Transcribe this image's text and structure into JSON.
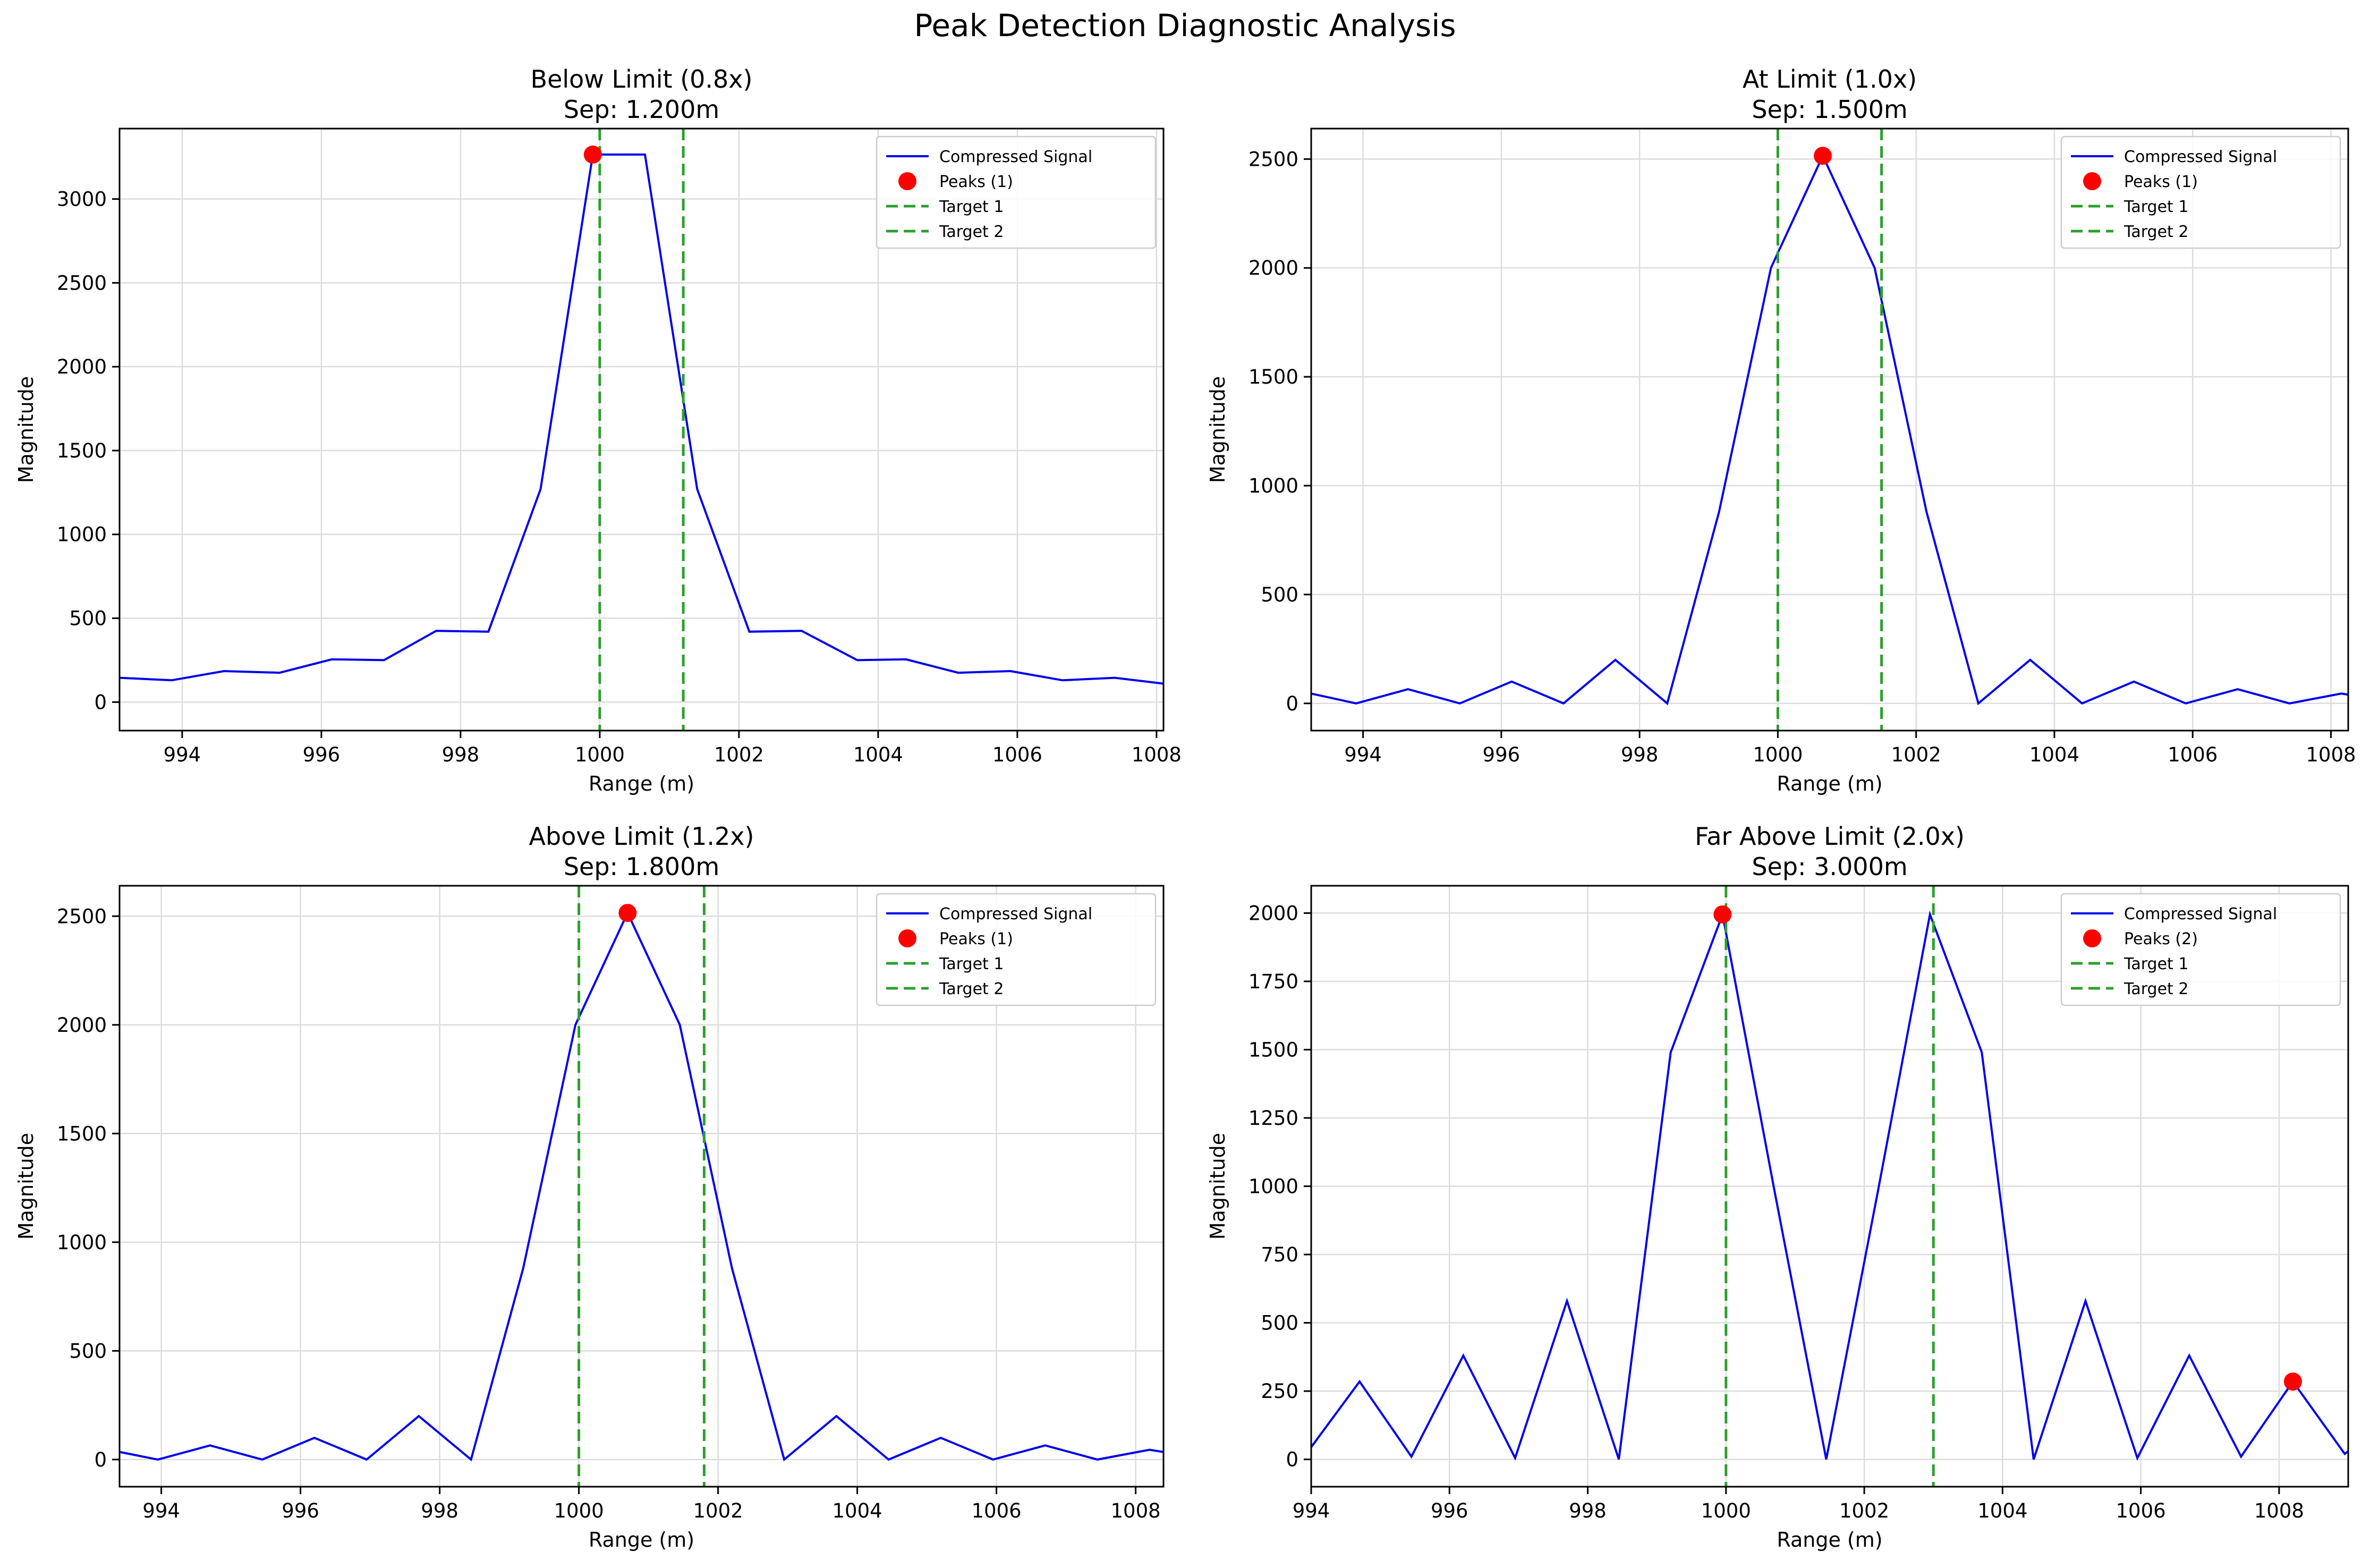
{
  "figure": {
    "title": "Peak Detection Diagnostic Analysis"
  },
  "legend_labels": {
    "signal": "Compressed Signal",
    "target1": "Target 1",
    "target2": "Target 2"
  },
  "colors": {
    "signal": "#0000ee",
    "peak": "#ff0000",
    "target": "#2ca02c",
    "grid": "#dcdcdc"
  },
  "chart_data": [
    {
      "type": "line",
      "title": "Below Limit (0.8x)",
      "subtitle": "Sep: 1.200m",
      "xlabel": "Range (m)",
      "ylabel": "Magnitude",
      "xlim": [
        993.1,
        1008.1
      ],
      "ylim": [
        -170,
        3420
      ],
      "xticks": [
        994,
        996,
        998,
        1000,
        1002,
        1004,
        1006,
        1008
      ],
      "yticks": [
        0,
        500,
        1000,
        1500,
        2000,
        2500,
        3000
      ],
      "grid": true,
      "legend_position": "top-right",
      "peaks_label": "Peaks (1)",
      "x": [
        993.1,
        993.85,
        994.6,
        995.4,
        996.15,
        996.9,
        997.65,
        998.4,
        999.15,
        999.9,
        1000.65,
        1001.4,
        1002.15,
        1002.9,
        1003.7,
        1004.4,
        1005.15,
        1005.9,
        1006.65,
        1007.4,
        1008.1
      ],
      "y": [
        145,
        130,
        185,
        175,
        255,
        250,
        425,
        420,
        1270,
        3265,
        3265,
        1270,
        420,
        425,
        250,
        255,
        175,
        185,
        130,
        145,
        110
      ],
      "peaks": [
        {
          "x": 999.9,
          "y": 3265
        }
      ],
      "targets": [
        1000.0,
        1001.2
      ]
    },
    {
      "type": "line",
      "title": "At Limit (1.0x)",
      "subtitle": "Sep: 1.500m",
      "xlabel": "Range (m)",
      "ylabel": "Magnitude",
      "xlim": [
        993.25,
        1008.25
      ],
      "ylim": [
        -125,
        2640
      ],
      "xticks": [
        994,
        996,
        998,
        1000,
        1002,
        1004,
        1006,
        1008
      ],
      "yticks": [
        0,
        500,
        1000,
        1500,
        2000,
        2500
      ],
      "grid": true,
      "legend_position": "top-right",
      "peaks_label": "Peaks (1)",
      "x": [
        993.25,
        993.9,
        994.65,
        995.4,
        996.15,
        996.9,
        997.65,
        998.4,
        999.15,
        999.9,
        1000.65,
        1001.4,
        1002.15,
        1002.9,
        1003.65,
        1004.4,
        1005.15,
        1005.9,
        1006.65,
        1007.4,
        1008.15,
        1008.25
      ],
      "y": [
        45,
        0,
        65,
        0,
        100,
        0,
        200,
        0,
        880,
        2000,
        2515,
        2000,
        880,
        0,
        200,
        0,
        100,
        0,
        65,
        0,
        45,
        40
      ],
      "peaks": [
        {
          "x": 1000.65,
          "y": 2515
        }
      ],
      "targets": [
        1000.0,
        1001.5
      ]
    },
    {
      "type": "line",
      "title": "Above Limit (1.2x)",
      "subtitle": "Sep: 1.800m",
      "xlabel": "Range (m)",
      "ylabel": "Magnitude",
      "xlim": [
        993.4,
        1008.4
      ],
      "ylim": [
        -125,
        2640
      ],
      "xticks": [
        994,
        996,
        998,
        1000,
        1002,
        1004,
        1006,
        1008
      ],
      "yticks": [
        0,
        500,
        1000,
        1500,
        2000,
        2500
      ],
      "grid": true,
      "legend_position": "top-right",
      "peaks_label": "Peaks (1)",
      "x": [
        993.4,
        993.95,
        994.7,
        995.45,
        996.2,
        996.95,
        997.7,
        998.45,
        999.2,
        999.95,
        1000.7,
        1001.45,
        1002.2,
        1002.95,
        1003.7,
        1004.45,
        1005.2,
        1005.95,
        1006.7,
        1007.45,
        1008.2,
        1008.4
      ],
      "y": [
        35,
        0,
        65,
        0,
        100,
        0,
        200,
        0,
        880,
        2000,
        2515,
        2000,
        880,
        0,
        200,
        0,
        100,
        0,
        65,
        0,
        45,
        35
      ],
      "peaks": [
        {
          "x": 1000.7,
          "y": 2515
        }
      ],
      "targets": [
        1000.0,
        1001.8
      ]
    },
    {
      "type": "line",
      "title": "Far Above Limit (2.0x)",
      "subtitle": "Sep: 3.000m",
      "xlabel": "Range (m)",
      "ylabel": "Magnitude",
      "xlim": [
        994,
        1009
      ],
      "ylim": [
        -100,
        2100
      ],
      "xticks": [
        994,
        996,
        998,
        1000,
        1002,
        1004,
        1006,
        1008
      ],
      "yticks": [
        0,
        250,
        500,
        750,
        1000,
        1250,
        1500,
        1750,
        2000
      ],
      "grid": true,
      "legend_position": "top-right",
      "peaks_label": "Peaks (2)",
      "x": [
        994.0,
        994.7,
        995.45,
        996.2,
        996.95,
        997.7,
        998.45,
        999.2,
        999.95,
        1000.7,
        1001.45,
        1002.2,
        1002.95,
        1003.7,
        1004.45,
        1005.2,
        1005.95,
        1006.7,
        1007.45,
        1008.2,
        1008.95,
        1009.0
      ],
      "y": [
        45,
        285,
        10,
        380,
        5,
        580,
        0,
        1490,
        1995,
        985,
        0,
        985,
        1995,
        1490,
        0,
        580,
        5,
        380,
        10,
        285,
        20,
        30
      ],
      "peaks": [
        {
          "x": 999.95,
          "y": 1995
        },
        {
          "x": 1008.2,
          "y": 285
        }
      ],
      "targets": [
        1000.0,
        1003.0
      ]
    }
  ]
}
